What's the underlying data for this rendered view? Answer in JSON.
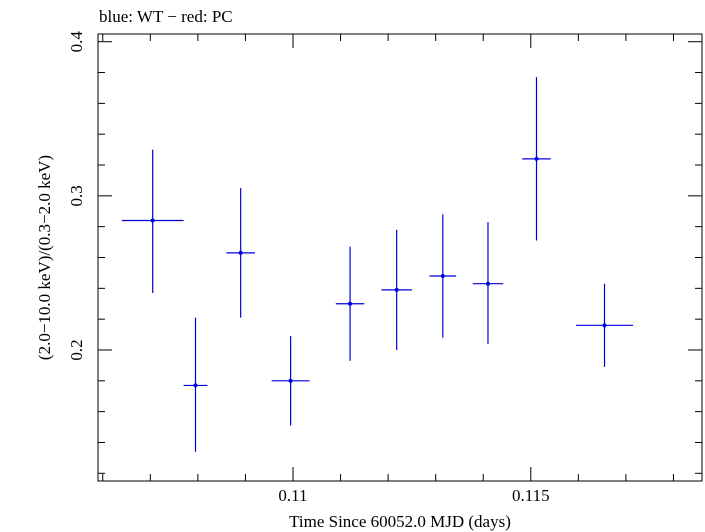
{
  "chart_data": {
    "type": "scatter",
    "title": "blue: WT − red: PC",
    "xlabel": "Time Since 60052.0 MJD (days)",
    "ylabel": "(2.0−10.0 keV)/(0.3−2.0 keV)",
    "xlim": [
      0.1059,
      0.1186
    ],
    "ylim": [
      0.115,
      0.405
    ],
    "x_ticks": [
      {
        "value": 0.11,
        "label": "0.11"
      },
      {
        "value": 0.115,
        "label": "0.115"
      }
    ],
    "y_ticks": [
      {
        "value": 0.2,
        "label": "0.2"
      },
      {
        "value": 0.3,
        "label": "0.3"
      },
      {
        "value": 0.4,
        "label": "0.4"
      }
    ],
    "grid": false,
    "series": [
      {
        "color": "#0000dd",
        "points": [
          {
            "x": 0.10705,
            "xerr": 0.00065,
            "y": 0.284,
            "yerr_low": 0.047,
            "yerr_high": 0.046
          },
          {
            "x": 0.10795,
            "xerr": 0.00025,
            "y": 0.177,
            "yerr_low": 0.043,
            "yerr_high": 0.044
          },
          {
            "x": 0.1089,
            "xerr": 0.0003,
            "y": 0.263,
            "yerr_low": 0.042,
            "yerr_high": 0.042
          },
          {
            "x": 0.10995,
            "xerr": 0.0004,
            "y": 0.18,
            "yerr_low": 0.029,
            "yerr_high": 0.029
          },
          {
            "x": 0.1112,
            "xerr": 0.0003,
            "y": 0.23,
            "yerr_low": 0.037,
            "yerr_high": 0.037
          },
          {
            "x": 0.11218,
            "xerr": 0.00032,
            "y": 0.239,
            "yerr_low": 0.039,
            "yerr_high": 0.039
          },
          {
            "x": 0.11315,
            "xerr": 0.00028,
            "y": 0.248,
            "yerr_low": 0.04,
            "yerr_high": 0.04
          },
          {
            "x": 0.1141,
            "xerr": 0.00032,
            "y": 0.243,
            "yerr_low": 0.039,
            "yerr_high": 0.04
          },
          {
            "x": 0.11512,
            "xerr": 0.0003,
            "y": 0.324,
            "yerr_low": 0.053,
            "yerr_high": 0.053
          },
          {
            "x": 0.11655,
            "xerr": 0.0006,
            "y": 0.216,
            "yerr_low": 0.027,
            "yerr_high": 0.027
          }
        ]
      }
    ]
  }
}
